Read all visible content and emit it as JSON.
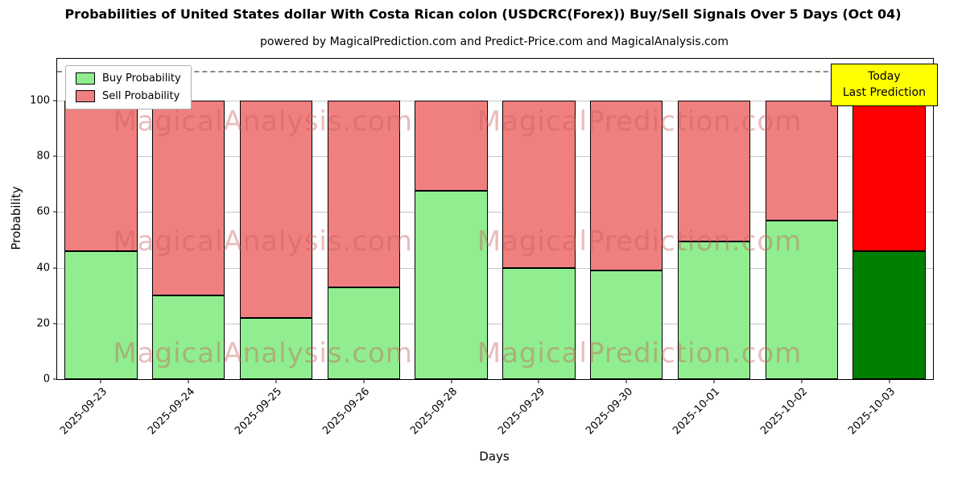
{
  "chart_data": {
    "type": "bar",
    "stacked": true,
    "title": "Probabilities of United States dollar With Costa Rican colon (USDCRC(Forex)) Buy/Sell Signals Over 5 Days (Oct 04)",
    "subtitle": "powered by MagicalPrediction.com and Predict-Price.com and MagicalAnalysis.com",
    "xlabel": "Days",
    "ylabel": "Probability",
    "ylim": [
      0,
      115
    ],
    "yticks": [
      0,
      20,
      40,
      60,
      80,
      100
    ],
    "grid": true,
    "legend_position": "upper left",
    "categories": [
      "2025-09-23",
      "2025-09-24",
      "2025-09-25",
      "2025-09-26",
      "2025-09-28",
      "2025-09-29",
      "2025-09-30",
      "2025-10-01",
      "2025-10-02",
      "2025-10-03"
    ],
    "series": [
      {
        "name": "Buy Probability",
        "color": "#90ee90",
        "final_bar_color": "#008000",
        "values": [
          46,
          30,
          22,
          33,
          67.5,
          40,
          39,
          49.5,
          57,
          46
        ]
      },
      {
        "name": "Sell Probability",
        "color": "#f08080",
        "final_bar_color": "#ff0000",
        "values": [
          54,
          70,
          78,
          67,
          32.5,
          60,
          61,
          50.5,
          43,
          54
        ]
      }
    ],
    "bar_edge_color": "#000000",
    "dashed_line_y": 110,
    "annotation": {
      "line1": "Today",
      "line2": "Last Prediction",
      "bg_color": "#ffff00"
    },
    "watermarks": [
      "MagicalAnalysis.com",
      "MagicalPrediction.com"
    ]
  }
}
